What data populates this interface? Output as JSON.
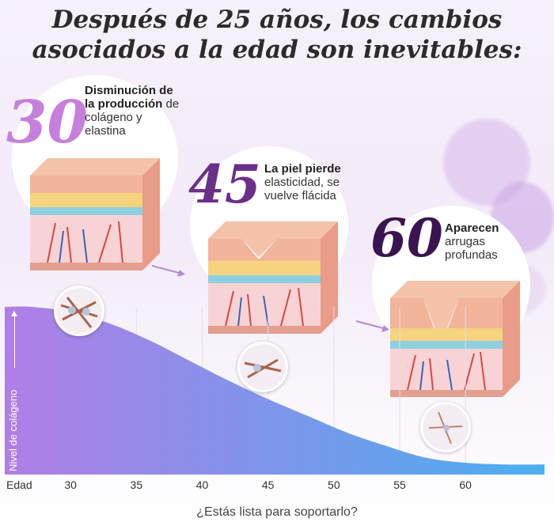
{
  "title": {
    "line1": "Después de 25 años, los cambios",
    "line2": "asociados a la edad son inevitables:"
  },
  "stages": [
    {
      "age": "30",
      "bold": "Disminución de la producción",
      "text": " de colágeno y elastina",
      "color": "#c77fdc"
    },
    {
      "age": "45",
      "bold": "La piel pierde",
      "text": " elasticidad, se vuelve flácida",
      "color": "#6a2f8a"
    },
    {
      "age": "60",
      "bold": "Aparecen",
      "text": " arrugas profundas",
      "color": "#3a1450"
    }
  ],
  "colors": {
    "curve_start": "#b07ee6",
    "curve_end": "#4aaef0",
    "skin_top": "#f2b49a",
    "skin_mid": "#f6d37f",
    "arrow": "#b58ad8"
  },
  "footer": "¿Estás lista para soportarlo?",
  "chart_data": {
    "type": "area",
    "title": "",
    "xlabel": "Edad",
    "ylabel": "Nivel de colágeno",
    "x_ticks": [
      30,
      35,
      40,
      45,
      50,
      55,
      60
    ],
    "xlim": [
      25,
      66
    ],
    "ylim": [
      0,
      100
    ],
    "x": [
      25,
      27,
      30,
      33,
      36,
      39,
      42,
      45,
      48,
      51,
      54,
      57,
      60,
      63,
      66
    ],
    "y": [
      100,
      100,
      97,
      90,
      80,
      68,
      56,
      45,
      35,
      25,
      17,
      10,
      7,
      6,
      6
    ],
    "annotations": [
      {
        "x": 30,
        "label": "30"
      },
      {
        "x": 45,
        "label": "45"
      },
      {
        "x": 60,
        "label": "60"
      }
    ]
  }
}
